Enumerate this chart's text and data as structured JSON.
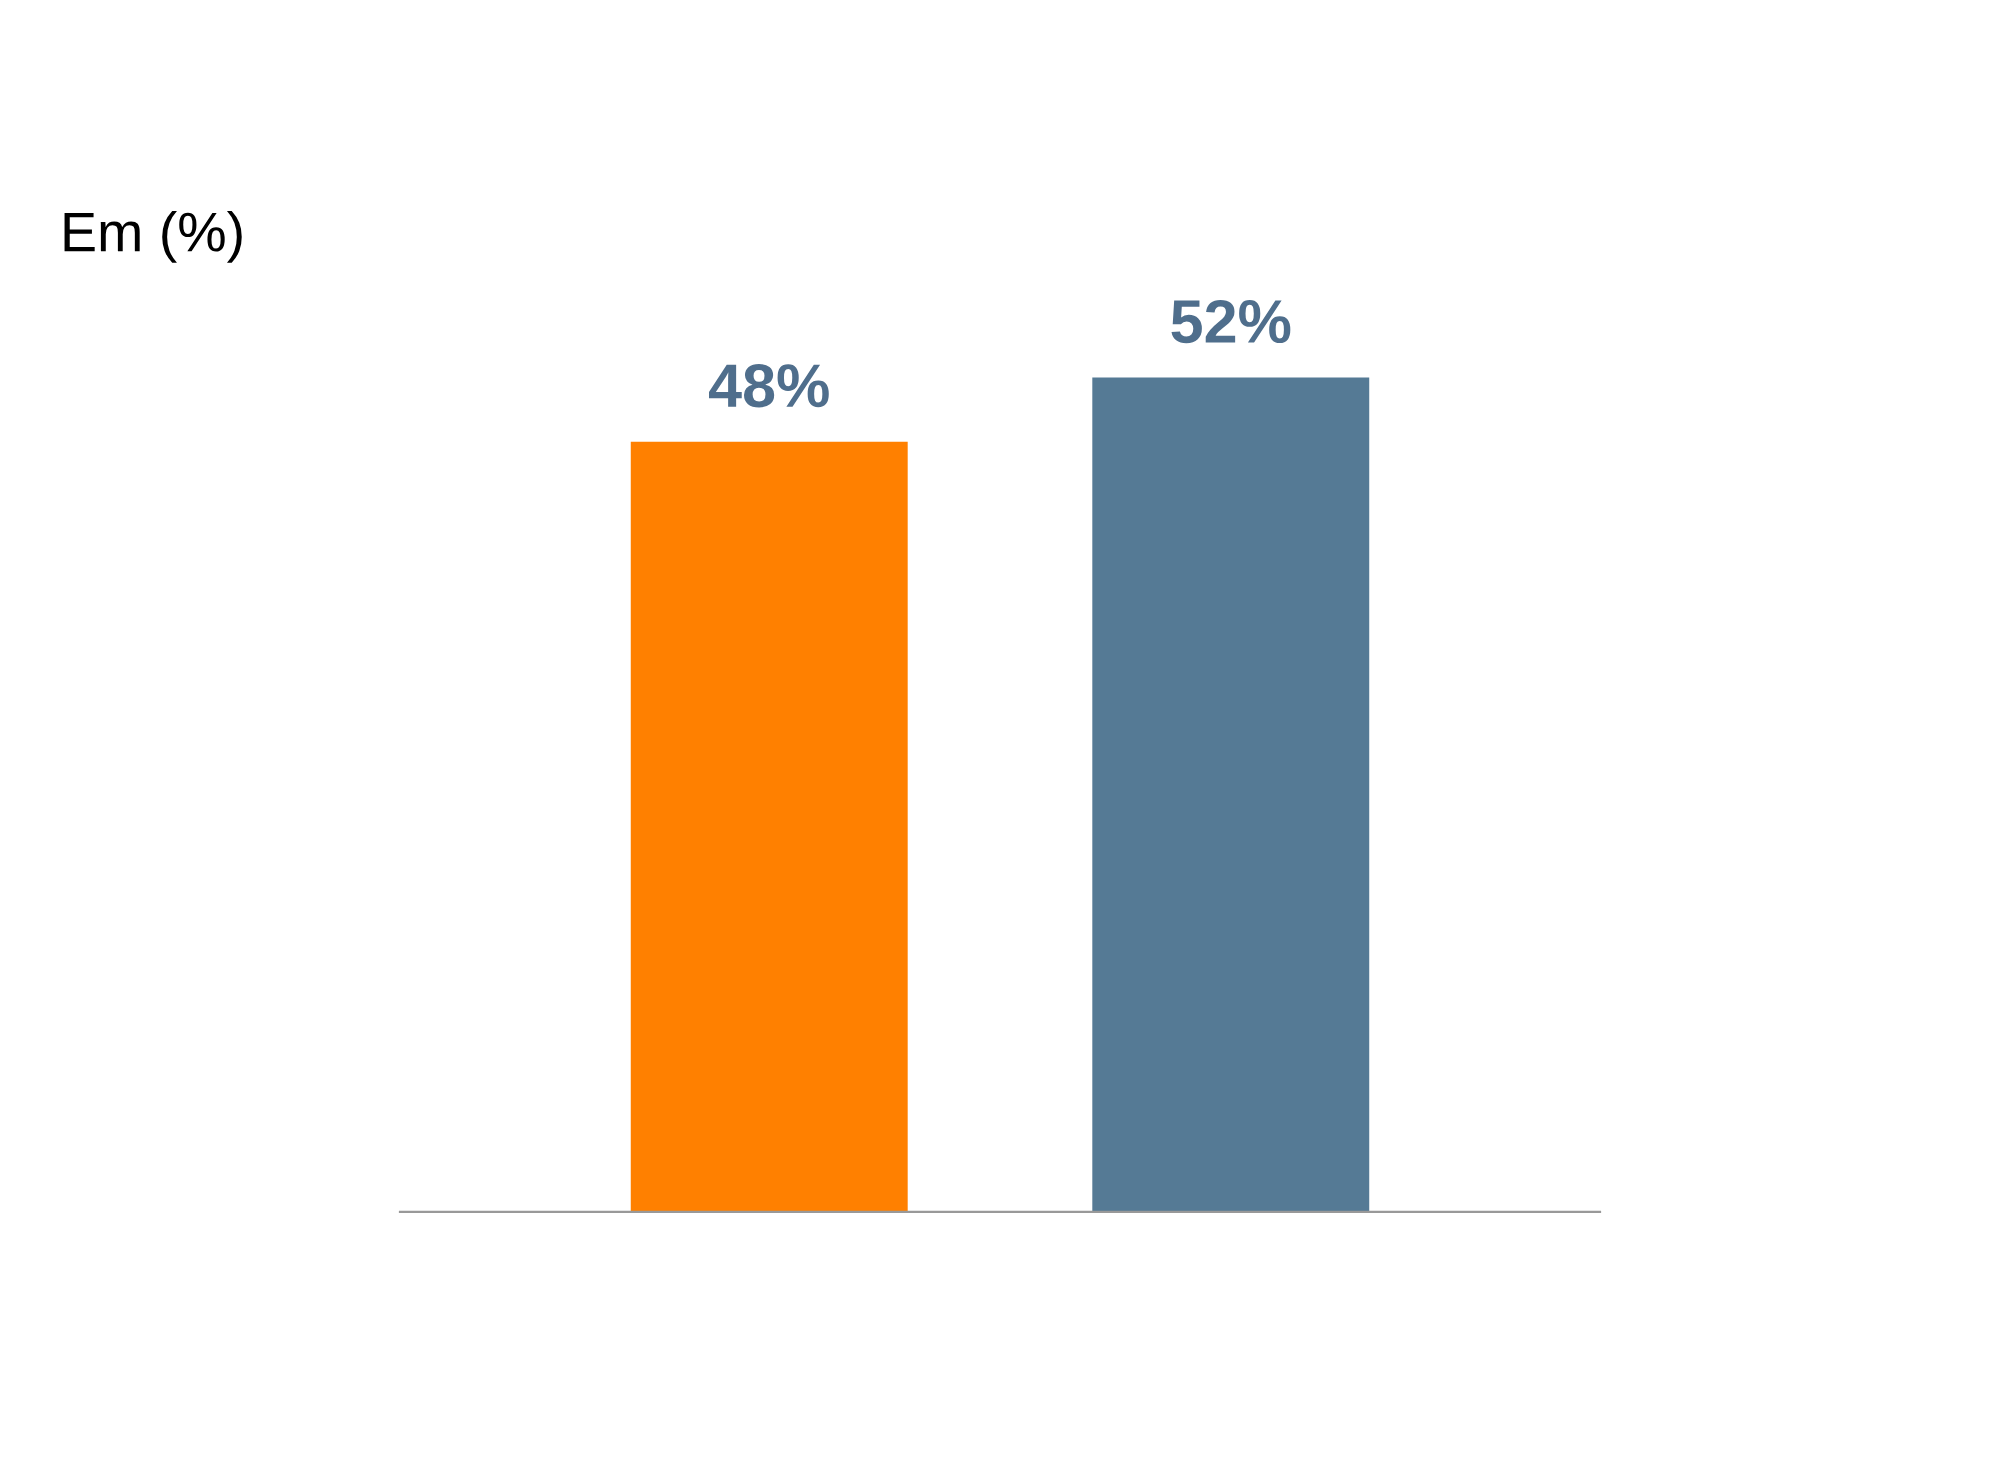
{
  "chart_data": {
    "type": "bar",
    "title": "Em (%)",
    "categories": [
      null,
      null
    ],
    "values": [
      48,
      52
    ],
    "value_labels": [
      "48%",
      "52%"
    ],
    "colors": [
      "#ff8000",
      "#557a95"
    ],
    "tick_labels": false,
    "grid": false,
    "legend": false
  }
}
